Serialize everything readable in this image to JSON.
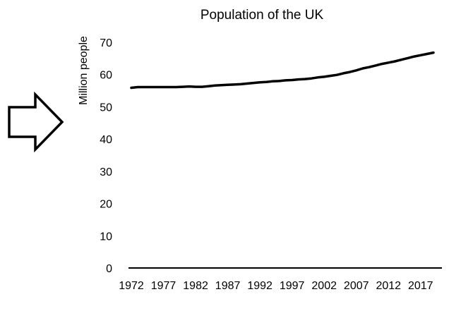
{
  "chart_data": {
    "type": "line",
    "title": "Population of the UK",
    "xlabel": "",
    "ylabel": "Million people",
    "ylim": [
      0,
      70
    ],
    "yticks": [
      0,
      10,
      20,
      30,
      40,
      50,
      60,
      70
    ],
    "xlim": [
      1972,
      2019
    ],
    "xticks": [
      "1972",
      "1977",
      "1982",
      "1987",
      "1992",
      "1997",
      "2002",
      "2007",
      "2012",
      "2017"
    ],
    "grid": false,
    "legend": "none",
    "series": [
      {
        "color": "#000000",
        "x": [
          1972,
          1973,
          1974,
          1975,
          1976,
          1977,
          1978,
          1979,
          1980,
          1981,
          1982,
          1983,
          1984,
          1985,
          1986,
          1987,
          1988,
          1989,
          1990,
          1991,
          1992,
          1993,
          1994,
          1995,
          1996,
          1997,
          1998,
          1999,
          2000,
          2001,
          2002,
          2003,
          2004,
          2005,
          2006,
          2007,
          2008,
          2009,
          2010,
          2011,
          2012,
          2013,
          2014,
          2015,
          2016,
          2017,
          2018,
          2019
        ],
        "values": [
          55.9,
          56.1,
          56.1,
          56.1,
          56.1,
          56.1,
          56.1,
          56.1,
          56.2,
          56.3,
          56.2,
          56.2,
          56.4,
          56.6,
          56.7,
          56.8,
          56.9,
          57.0,
          57.2,
          57.4,
          57.6,
          57.7,
          57.9,
          58.0,
          58.2,
          58.3,
          58.5,
          58.6,
          58.8,
          59.1,
          59.3,
          59.6,
          59.9,
          60.4,
          60.8,
          61.3,
          61.9,
          62.3,
          62.8,
          63.3,
          63.7,
          64.1,
          64.6,
          65.1,
          65.6,
          66.0,
          66.4,
          66.8
        ]
      }
    ]
  },
  "decorations": {
    "arrow_icon": "right-arrow-outline"
  }
}
